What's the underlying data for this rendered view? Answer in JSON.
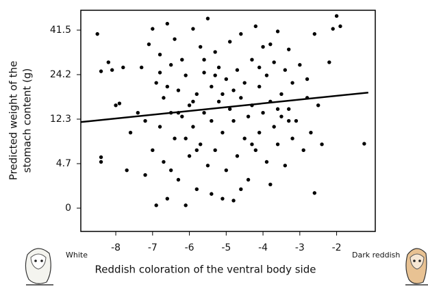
{
  "chart_data": {
    "type": "scatter",
    "xlabel": "Reddish coloration of the ventral body side",
    "ylabel": [
      "Predicted weight of the",
      "stomach content (g)"
    ],
    "left_annotation": "White",
    "right_annotation": "Dark reddish",
    "color": "#000000",
    "xlim": [
      -8.95,
      -0.95
    ],
    "xticks": [
      -8,
      -7,
      -6,
      -5,
      -4,
      -3,
      -2
    ],
    "ylim": [
      -2.5,
      49.5
    ],
    "yticks": [
      0,
      4.7,
      12.3,
      24.2,
      41.5
    ],
    "x": [
      -8.5,
      -8.4,
      -8.2,
      -8.1,
      -7.8,
      -8.4,
      -8.4,
      -8.0,
      -7.9,
      -7.7,
      -7.6,
      -7.4,
      -7.3,
      -7.2,
      -7.1,
      -7.0,
      -7.0,
      -6.9,
      -6.9,
      -6.8,
      -6.8,
      -6.7,
      -6.7,
      -6.6,
      -6.6,
      -6.5,
      -6.5,
      -6.4,
      -6.4,
      -6.3,
      -6.3,
      -6.2,
      -6.2,
      -6.1,
      -6.1,
      -6.0,
      -6.0,
      -5.9,
      -5.9,
      -5.8,
      -5.8,
      -5.7,
      -5.7,
      -5.6,
      -5.6,
      -5.5,
      -5.5,
      -5.4,
      -5.4,
      -5.3,
      -5.3,
      -5.2,
      -5.2,
      -5.1,
      -5.1,
      -5.0,
      -5.0,
      -4.9,
      -4.9,
      -4.8,
      -4.8,
      -4.7,
      -4.7,
      -4.6,
      -4.6,
      -4.5,
      -4.5,
      -4.4,
      -4.4,
      -4.3,
      -4.3,
      -4.2,
      -4.2,
      -4.1,
      -4.1,
      -4.0,
      -4.0,
      -3.9,
      -3.9,
      -3.8,
      -3.8,
      -3.7,
      -3.7,
      -3.6,
      -3.6,
      -3.5,
      -3.5,
      -3.4,
      -3.4,
      -3.3,
      -3.3,
      -3.2,
      -3.2,
      -3.1,
      -3.0,
      -2.9,
      -2.8,
      -2.7,
      -2.6,
      -2.5,
      -2.4,
      -2.2,
      -2.1,
      -2.0,
      -1.9,
      -2.6,
      -1.25,
      -6.6,
      -6.1,
      -5.6,
      -5.1,
      -4.6,
      -4.1,
      -3.6,
      -7.2,
      -6.8,
      -6.3,
      -5.8,
      -5.3,
      -4.8,
      -4.3,
      -3.8,
      -3.3,
      -2.8,
      -6.5,
      -5.9,
      -5.4
    ],
    "values": [
      40,
      25.5,
      29,
      26,
      27,
      5.8,
      5.0,
      16,
      16.5,
      4,
      10,
      14,
      27,
      3.5,
      36,
      42,
      7,
      22,
      0.3,
      32,
      11,
      18,
      5,
      44,
      1,
      14,
      28,
      9,
      38,
      20,
      3,
      13,
      30,
      0.3,
      24,
      16,
      6,
      42,
      11,
      19,
      2,
      35,
      8,
      25,
      14,
      46,
      4.5,
      21,
      12,
      33,
      7,
      17,
      27,
      1,
      10,
      23,
      4,
      15,
      37,
      0.8,
      12,
      26,
      6,
      18,
      40,
      9,
      22,
      13,
      3,
      30,
      16,
      7,
      43,
      21,
      10,
      35,
      14,
      5,
      24,
      17,
      2.5,
      29,
      11,
      41,
      8,
      19,
      13,
      26,
      4.5,
      15,
      34,
      9,
      22,
      12,
      28,
      7,
      18,
      10,
      40,
      16,
      8,
      29,
      42,
      47,
      43,
      1.6,
      8.1,
      21,
      9,
      30,
      19,
      2,
      27,
      15,
      12,
      25,
      14,
      7,
      24,
      20,
      8,
      36,
      12,
      23,
      4,
      17,
      1.5
    ],
    "fit": {
      "color": "#000000",
      "x": [
        -8.95,
        -1.14
      ],
      "values": [
        11.8,
        19.4
      ]
    }
  }
}
